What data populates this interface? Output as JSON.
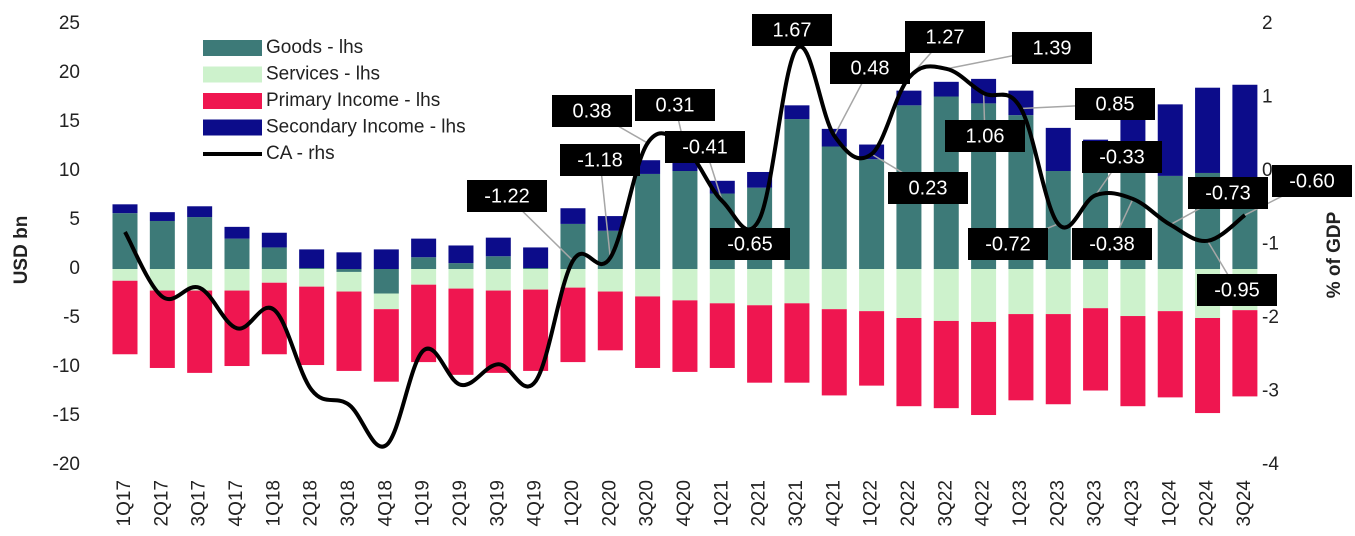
{
  "chart_data": {
    "type": "bar",
    "y_label": "USD bn",
    "y2_label": "% of GDP",
    "categories": [
      "1Q17",
      "2Q17",
      "3Q17",
      "4Q17",
      "1Q18",
      "2Q18",
      "3Q18",
      "4Q18",
      "1Q19",
      "2Q19",
      "3Q19",
      "4Q19",
      "1Q20",
      "2Q20",
      "3Q20",
      "4Q20",
      "1Q21",
      "2Q21",
      "3Q21",
      "4Q21",
      "1Q22",
      "2Q22",
      "3Q22",
      "4Q22",
      "1Q23",
      "2Q23",
      "3Q23",
      "4Q23",
      "1Q24",
      "2Q24",
      "3Q24"
    ],
    "ylim": [
      -20,
      25
    ],
    "yticks": [
      -20,
      -15,
      -10,
      -5,
      0,
      5,
      10,
      15,
      20,
      25
    ],
    "y2lim": [
      -4,
      2
    ],
    "y2ticks": [
      -4,
      -3,
      -2,
      -1,
      0,
      1,
      2
    ],
    "stacked": true,
    "series": [
      {
        "name": "Goods - lhs",
        "type": "bar",
        "color": "#3d7a78",
        "values": [
          5.7,
          4.9,
          5.3,
          3.1,
          2.2,
          0.1,
          -0.3,
          -2.5,
          1.2,
          0.6,
          1.3,
          0.1,
          4.6,
          3.9,
          9.7,
          10.0,
          7.7,
          8.3,
          15.3,
          12.5,
          11.2,
          16.7,
          17.6,
          16.9,
          15.7,
          10.0,
          10.3,
          10.0,
          9.5,
          9.8,
          9.3
        ]
      },
      {
        "name": "Services - lhs",
        "type": "bar",
        "color": "#cdf2cc",
        "values": [
          -1.2,
          -2.2,
          -2.2,
          -2.2,
          -1.4,
          -1.8,
          -2.0,
          -1.6,
          -1.6,
          -2.0,
          -2.2,
          -2.1,
          -1.9,
          -2.3,
          -2.8,
          -3.2,
          -3.5,
          -3.7,
          -3.5,
          -4.1,
          -4.3,
          -5.0,
          -5.3,
          -5.4,
          -4.6,
          -4.6,
          -4.0,
          -4.8,
          -4.3,
          -5.0,
          -4.2
        ]
      },
      {
        "name": "Primary Income - lhs",
        "type": "bar",
        "color": "#ef1650",
        "values": [
          -7.5,
          -7.9,
          -8.4,
          -7.7,
          -7.3,
          -8.0,
          -8.1,
          -7.4,
          -7.9,
          -8.8,
          -8.4,
          -8.3,
          -7.6,
          -6.0,
          -7.3,
          -7.3,
          -6.6,
          -7.9,
          -8.1,
          -8.8,
          -7.6,
          -9.0,
          -8.9,
          -9.5,
          -8.8,
          -9.2,
          -8.4,
          -9.2,
          -8.8,
          -9.7,
          -8.8
        ]
      },
      {
        "name": "Secondary Income - lhs",
        "type": "bar",
        "color": "#0c0c8a",
        "values": [
          0.9,
          0.9,
          1.1,
          1.2,
          1.5,
          1.9,
          1.7,
          2.0,
          1.9,
          1.8,
          1.9,
          2.1,
          1.6,
          1.5,
          1.4,
          1.4,
          1.3,
          1.6,
          1.4,
          1.8,
          1.5,
          1.5,
          1.5,
          2.5,
          2.5,
          4.4,
          2.9,
          7.8,
          7.3,
          8.7,
          9.5
        ]
      },
      {
        "name": "CA - rhs",
        "type": "line",
        "axis": "y2",
        "color": "#000000",
        "values": [
          -0.83,
          -1.71,
          -1.59,
          -2.14,
          -1.89,
          -2.98,
          -3.18,
          -3.73,
          -2.44,
          -2.91,
          -2.63,
          -2.86,
          -1.22,
          -1.18,
          0.38,
          0.31,
          -0.41,
          -0.65,
          1.67,
          0.48,
          0.23,
          1.27,
          1.39,
          1.06,
          0.85,
          -0.72,
          -0.33,
          -0.38,
          -0.73,
          -0.95,
          -0.6
        ],
        "value_labels": [
          null,
          null,
          null,
          null,
          null,
          null,
          null,
          null,
          null,
          null,
          null,
          null,
          "-1.22",
          "-1.18",
          "0.38",
          "0.31",
          "-0.41",
          "-0.65",
          "1.67",
          "0.48",
          "0.23",
          "1.27",
          "1.39",
          "1.06",
          "0.85",
          "-0.72",
          "-0.33",
          "-0.38",
          "-0.73",
          "-0.95",
          "-0.60"
        ]
      }
    ],
    "legend": "upper left"
  }
}
